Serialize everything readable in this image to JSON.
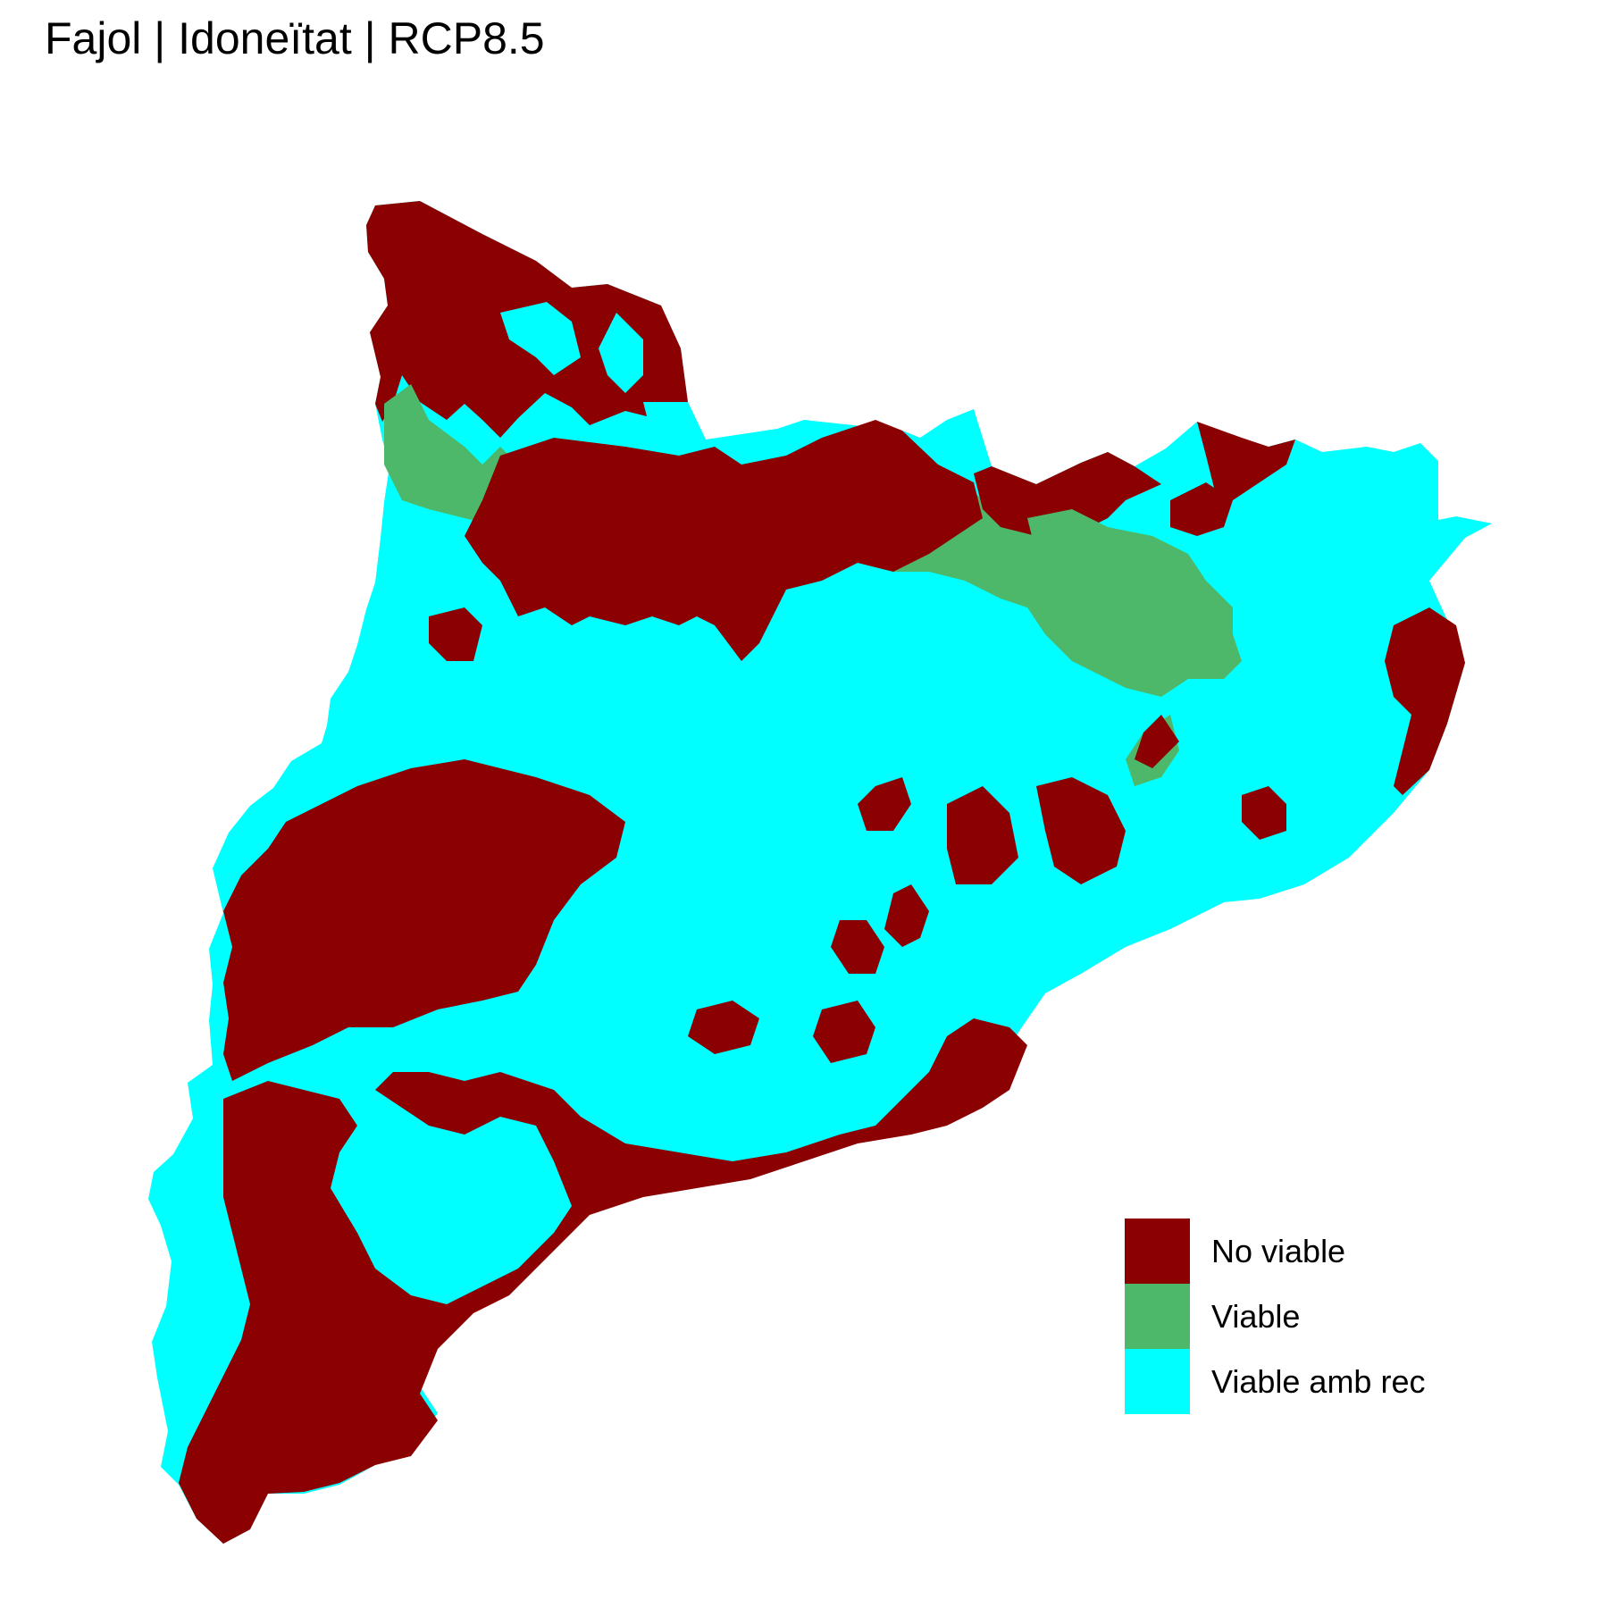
{
  "title": "Fajol | Idoneïtat | RCP8.5",
  "legend": {
    "items": [
      {
        "label": "No viable",
        "color": "#8B0000"
      },
      {
        "label": "Viable",
        "color": "#4DB86A"
      },
      {
        "label": "Viable amb rec",
        "color": "#00FFFF"
      }
    ]
  }
}
